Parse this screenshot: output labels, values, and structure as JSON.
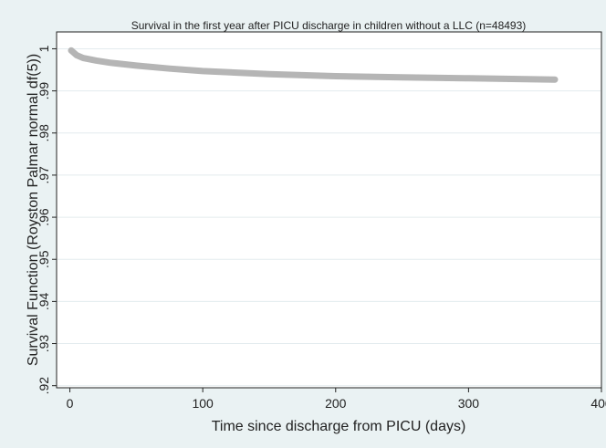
{
  "chart_data": {
    "type": "line",
    "title": "Survival in the first year after PICU discharge in children without a LLC (n=48493)",
    "xlabel": "Time since discharge from PICU (days)",
    "ylabel": "Survival Function (Royston Palmar normal df(5))",
    "xlim": [
      -10,
      400
    ],
    "ylim": [
      0.9195,
      1.004
    ],
    "x_ticks": [
      0,
      100,
      200,
      300,
      400
    ],
    "x_tick_labels": [
      "0",
      "100",
      "200",
      "300",
      "400"
    ],
    "y_ticks": [
      1,
      0.99,
      0.98,
      0.97,
      0.96,
      0.95,
      0.94,
      0.93,
      0.92
    ],
    "y_tick_labels": [
      "1",
      ".99",
      ".98",
      ".97",
      ".96",
      ".95",
      ".94",
      ".93",
      ".92"
    ],
    "grid": "horizontal",
    "series_color": "#b5b5b5",
    "series": [
      {
        "x": [
          1,
          5,
          10,
          20,
          30,
          50,
          75,
          100,
          150,
          200,
          250,
          300,
          365
        ],
        "y": [
          0.9996,
          0.9985,
          0.9978,
          0.9972,
          0.9967,
          0.996,
          0.9953,
          0.9947,
          0.994,
          0.9935,
          0.9932,
          0.993,
          0.9927
        ]
      }
    ]
  }
}
